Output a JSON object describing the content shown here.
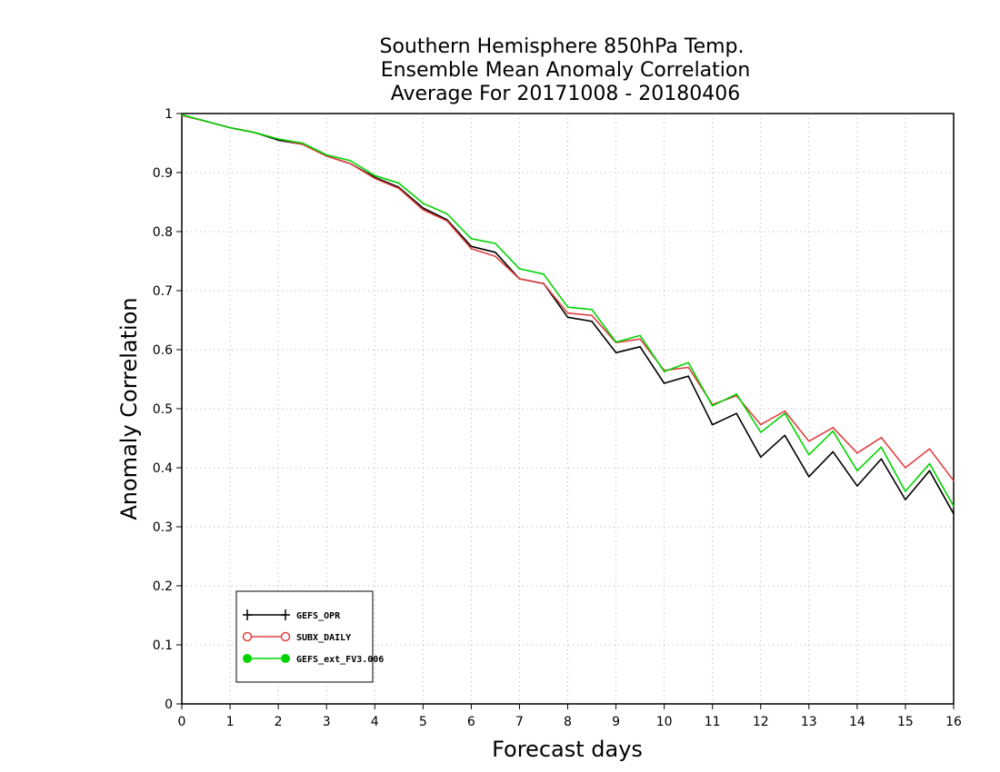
{
  "chart_data": {
    "type": "line",
    "title_lines": [
      "Southern Hemisphere 850hPa Temp.",
      "Ensemble Mean Anomaly Correlation",
      "Average For 20171008 - 20180406"
    ],
    "xlabel": "Forecast days",
    "ylabel": "Anomaly Correlation",
    "xlim": [
      0,
      16
    ],
    "ylim": [
      0,
      1
    ],
    "x_ticks": [
      "0",
      "1",
      "2",
      "3",
      "4",
      "5",
      "6",
      "7",
      "8",
      "9",
      "10",
      "11",
      "12",
      "13",
      "14",
      "15",
      "16"
    ],
    "y_ticks": [
      "0",
      "0.1",
      "0.2",
      "0.3",
      "0.4",
      "0.5",
      "0.6",
      "0.7",
      "0.8",
      "0.9",
      "1"
    ],
    "grid": true,
    "legend_position": "bottom-left",
    "x": [
      0,
      0.5,
      1,
      1.5,
      2,
      2.5,
      3,
      3.5,
      4,
      4.5,
      5,
      5.5,
      6,
      6.5,
      7,
      7.5,
      8,
      8.5,
      9,
      9.5,
      10,
      10.5,
      11,
      11.5,
      12,
      12.5,
      13,
      13.5,
      14,
      14.5,
      15,
      15.5,
      16
    ],
    "series": [
      {
        "name": "GEFS_OPR",
        "color": "#000000",
        "marker": "plus",
        "values": [
          0.997,
          0.987,
          0.976,
          0.968,
          0.955,
          0.948,
          0.928,
          0.915,
          0.892,
          0.875,
          0.84,
          0.82,
          0.775,
          0.765,
          0.72,
          0.712,
          0.655,
          0.648,
          0.595,
          0.605,
          0.543,
          0.555,
          0.473,
          0.492,
          0.418,
          0.455,
          0.385,
          0.427,
          0.369,
          0.415,
          0.346,
          0.395,
          0.322
        ]
      },
      {
        "name": "SUBX_DAILY",
        "color": "#e04040",
        "marker": "open-circle",
        "values": [
          0.997,
          0.987,
          0.976,
          0.968,
          0.957,
          0.948,
          0.928,
          0.915,
          0.89,
          0.873,
          0.837,
          0.818,
          0.771,
          0.758,
          0.72,
          0.712,
          0.662,
          0.658,
          0.612,
          0.618,
          0.565,
          0.57,
          0.507,
          0.522,
          0.473,
          0.496,
          0.445,
          0.468,
          0.425,
          0.451,
          0.4,
          0.432,
          0.378
        ]
      },
      {
        "name": "GEFS_ext_FV3.006",
        "color": "#00d400",
        "marker": "filled-circle",
        "values": [
          0.998,
          0.987,
          0.976,
          0.968,
          0.957,
          0.95,
          0.93,
          0.92,
          0.895,
          0.882,
          0.848,
          0.83,
          0.788,
          0.78,
          0.737,
          0.728,
          0.672,
          0.668,
          0.613,
          0.624,
          0.563,
          0.578,
          0.505,
          0.525,
          0.46,
          0.492,
          0.422,
          0.462,
          0.395,
          0.435,
          0.36,
          0.407,
          0.335
        ]
      }
    ]
  }
}
